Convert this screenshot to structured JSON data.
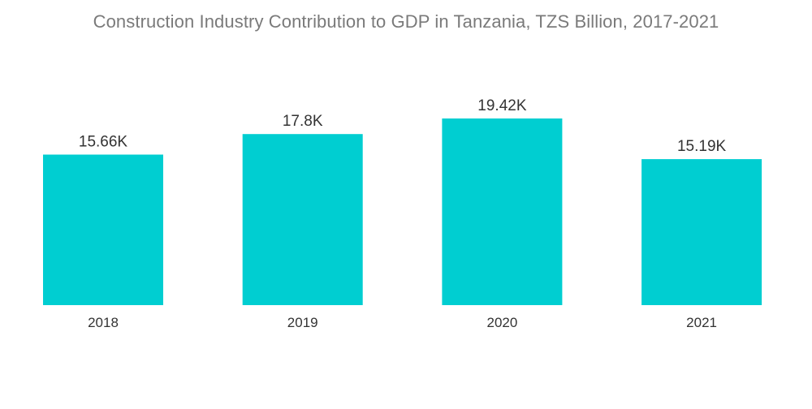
{
  "chart_data": {
    "type": "bar",
    "title": "Construction Industry Contribution to GDP in Tanzania, TZS Billion, 2017-2021",
    "categories": [
      "2018",
      "2019",
      "2020",
      "2021"
    ],
    "values": [
      15660,
      17800,
      19420,
      15190
    ],
    "data_labels": [
      "15.66K",
      "17.8K",
      "19.42K",
      "15.19K"
    ],
    "xlabel": "",
    "ylabel": "",
    "ylim": [
      0,
      19420
    ],
    "grid": false,
    "legend": "none",
    "color": "#00ced1"
  }
}
